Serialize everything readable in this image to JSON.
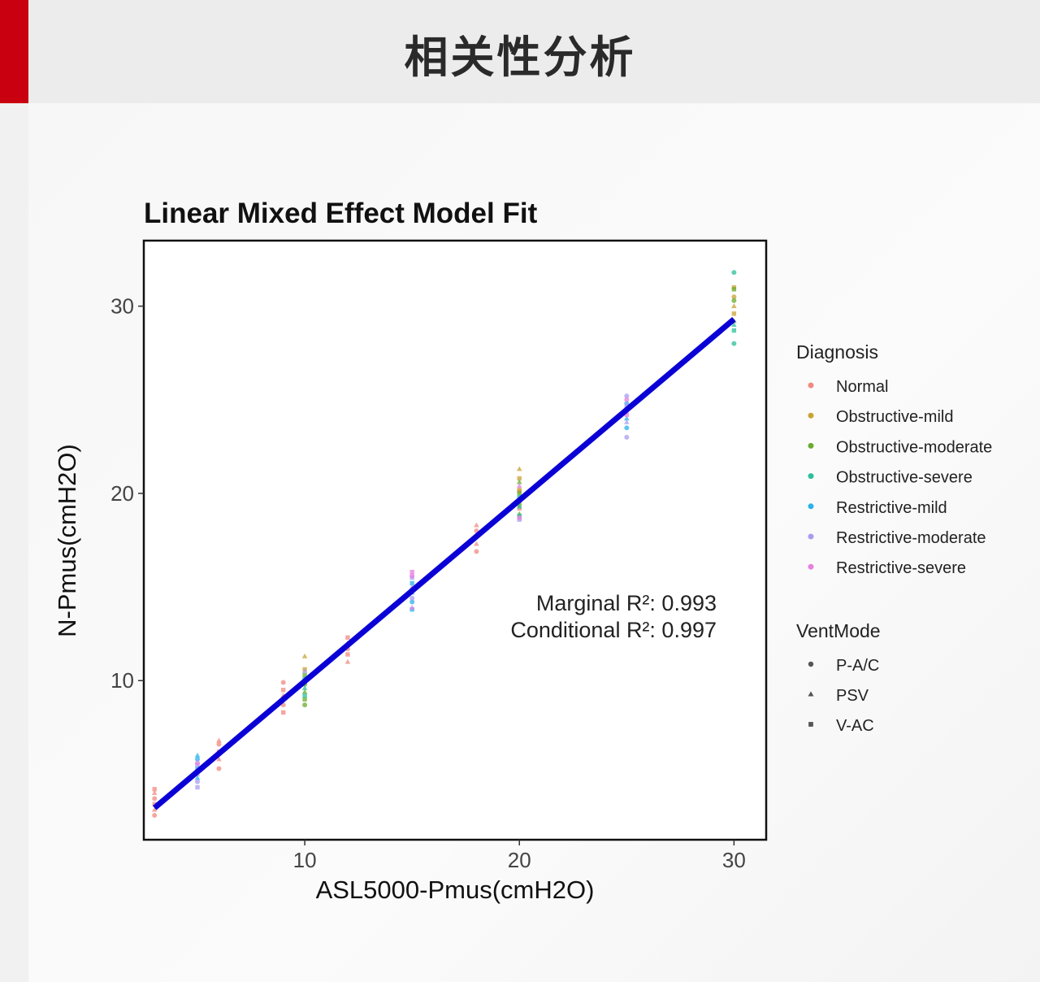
{
  "page": {
    "title": "相关性分析"
  },
  "chart_data": {
    "type": "scatter",
    "title": "Linear Mixed Effect Model Fit",
    "xlabel": "ASL5000-Pmus(cmH2O)",
    "ylabel": "N-Pmus(cmH2O)",
    "xlim": [
      2.5,
      31.5
    ],
    "ylim": [
      1.5,
      33.5
    ],
    "xticks": [
      10,
      20,
      30
    ],
    "yticks": [
      10,
      20,
      30
    ],
    "grid": false,
    "legend_position": "right",
    "annotation": [
      "Marginal R²: 0.993",
      "Conditional R²: 0.997"
    ],
    "fit_line": {
      "x": [
        3,
        30
      ],
      "y": [
        3.2,
        29.3
      ],
      "color": "#0a00d6"
    },
    "legend": {
      "diagnosis_title": "Diagnosis",
      "diagnosis": [
        {
          "name": "Normal",
          "color": "#f08a80"
        },
        {
          "name": "Obstructive-mild",
          "color": "#c9a233"
        },
        {
          "name": "Obstructive-moderate",
          "color": "#6aac2e"
        },
        {
          "name": "Obstructive-severe",
          "color": "#2cc09a"
        },
        {
          "name": "Restrictive-mild",
          "color": "#2ab2ea"
        },
        {
          "name": "Restrictive-moderate",
          "color": "#a89cf0"
        },
        {
          "name": "Restrictive-severe",
          "color": "#e77fe0"
        }
      ],
      "ventmode_title": "VentMode",
      "ventmode": [
        {
          "name": "P-A/C",
          "shape": "circle"
        },
        {
          "name": "PSV",
          "shape": "triangle"
        },
        {
          "name": "V-AC",
          "shape": "square"
        }
      ]
    },
    "series": [
      {
        "name": "Normal",
        "points": [
          [
            3,
            2.8
          ],
          [
            3,
            3.1
          ],
          [
            3,
            3.4
          ],
          [
            3,
            3.7
          ],
          [
            3,
            4.0
          ],
          [
            3,
            4.2
          ],
          [
            6,
            5.3
          ],
          [
            6,
            5.8
          ],
          [
            6,
            6.2
          ],
          [
            6,
            6.6
          ],
          [
            6,
            6.8
          ],
          [
            9,
            8.3
          ],
          [
            9,
            8.7
          ],
          [
            9,
            9.2
          ],
          [
            9,
            9.5
          ],
          [
            9,
            9.9
          ],
          [
            12,
            11.0
          ],
          [
            12,
            11.4
          ],
          [
            12,
            11.7
          ],
          [
            12,
            12.0
          ],
          [
            12,
            12.3
          ],
          [
            18,
            16.9
          ],
          [
            18,
            17.3
          ],
          [
            18,
            17.7
          ],
          [
            18,
            18.0
          ],
          [
            18,
            18.3
          ],
          [
            20,
            19.2
          ],
          [
            20,
            20.1
          ]
        ]
      },
      {
        "name": "Obstructive-mild",
        "points": [
          [
            10,
            11.3
          ],
          [
            10,
            10.6
          ],
          [
            10,
            9.9
          ],
          [
            20,
            21.3
          ],
          [
            20,
            20.8
          ],
          [
            20,
            20.2
          ],
          [
            20,
            19.6
          ],
          [
            30,
            31.0
          ],
          [
            30,
            30.5
          ],
          [
            30,
            30.0
          ],
          [
            30,
            29.6
          ]
        ]
      },
      {
        "name": "Obstructive-moderate",
        "points": [
          [
            10,
            10.3
          ],
          [
            10,
            9.8
          ],
          [
            10,
            9.4
          ],
          [
            10,
            9.0
          ],
          [
            10,
            8.7
          ],
          [
            20,
            20.6
          ],
          [
            20,
            20.0
          ],
          [
            20,
            19.4
          ],
          [
            20,
            18.9
          ],
          [
            30,
            30.9
          ],
          [
            30,
            30.3
          ],
          [
            30,
            29.2
          ]
        ]
      },
      {
        "name": "Obstructive-severe",
        "points": [
          [
            10,
            10.1
          ],
          [
            10,
            9.6
          ],
          [
            10,
            9.2
          ],
          [
            20,
            19.8
          ],
          [
            20,
            19.3
          ],
          [
            20,
            18.8
          ],
          [
            30,
            31.8
          ],
          [
            30,
            29.0
          ],
          [
            30,
            28.7
          ],
          [
            30,
            28.0
          ]
        ]
      },
      {
        "name": "Restrictive-mild",
        "points": [
          [
            5,
            4.8
          ],
          [
            5,
            5.3
          ],
          [
            5,
            5.8
          ],
          [
            5,
            6.0
          ],
          [
            15,
            13.8
          ],
          [
            15,
            14.2
          ],
          [
            15,
            14.7
          ],
          [
            15,
            15.2
          ],
          [
            25,
            23.5
          ],
          [
            25,
            24.0
          ],
          [
            25,
            24.5
          ],
          [
            25,
            24.8
          ]
        ]
      },
      {
        "name": "Restrictive-moderate",
        "points": [
          [
            5,
            4.3
          ],
          [
            5,
            4.6
          ],
          [
            5,
            5.0
          ],
          [
            5,
            5.5
          ],
          [
            15,
            14.4
          ],
          [
            15,
            15.0
          ],
          [
            15,
            15.5
          ],
          [
            25,
            23.0
          ],
          [
            25,
            23.8
          ],
          [
            25,
            24.7
          ],
          [
            25,
            25.2
          ],
          [
            10,
            10.5
          ],
          [
            20,
            18.6
          ]
        ]
      },
      {
        "name": "Restrictive-severe",
        "points": [
          [
            5,
            5.6
          ],
          [
            15,
            13.9
          ],
          [
            15,
            15.8
          ],
          [
            15,
            15.6
          ],
          [
            15,
            14.9
          ],
          [
            25,
            24.2
          ],
          [
            25,
            25.0
          ],
          [
            20,
            20.4
          ],
          [
            20,
            18.7
          ]
        ]
      }
    ]
  }
}
